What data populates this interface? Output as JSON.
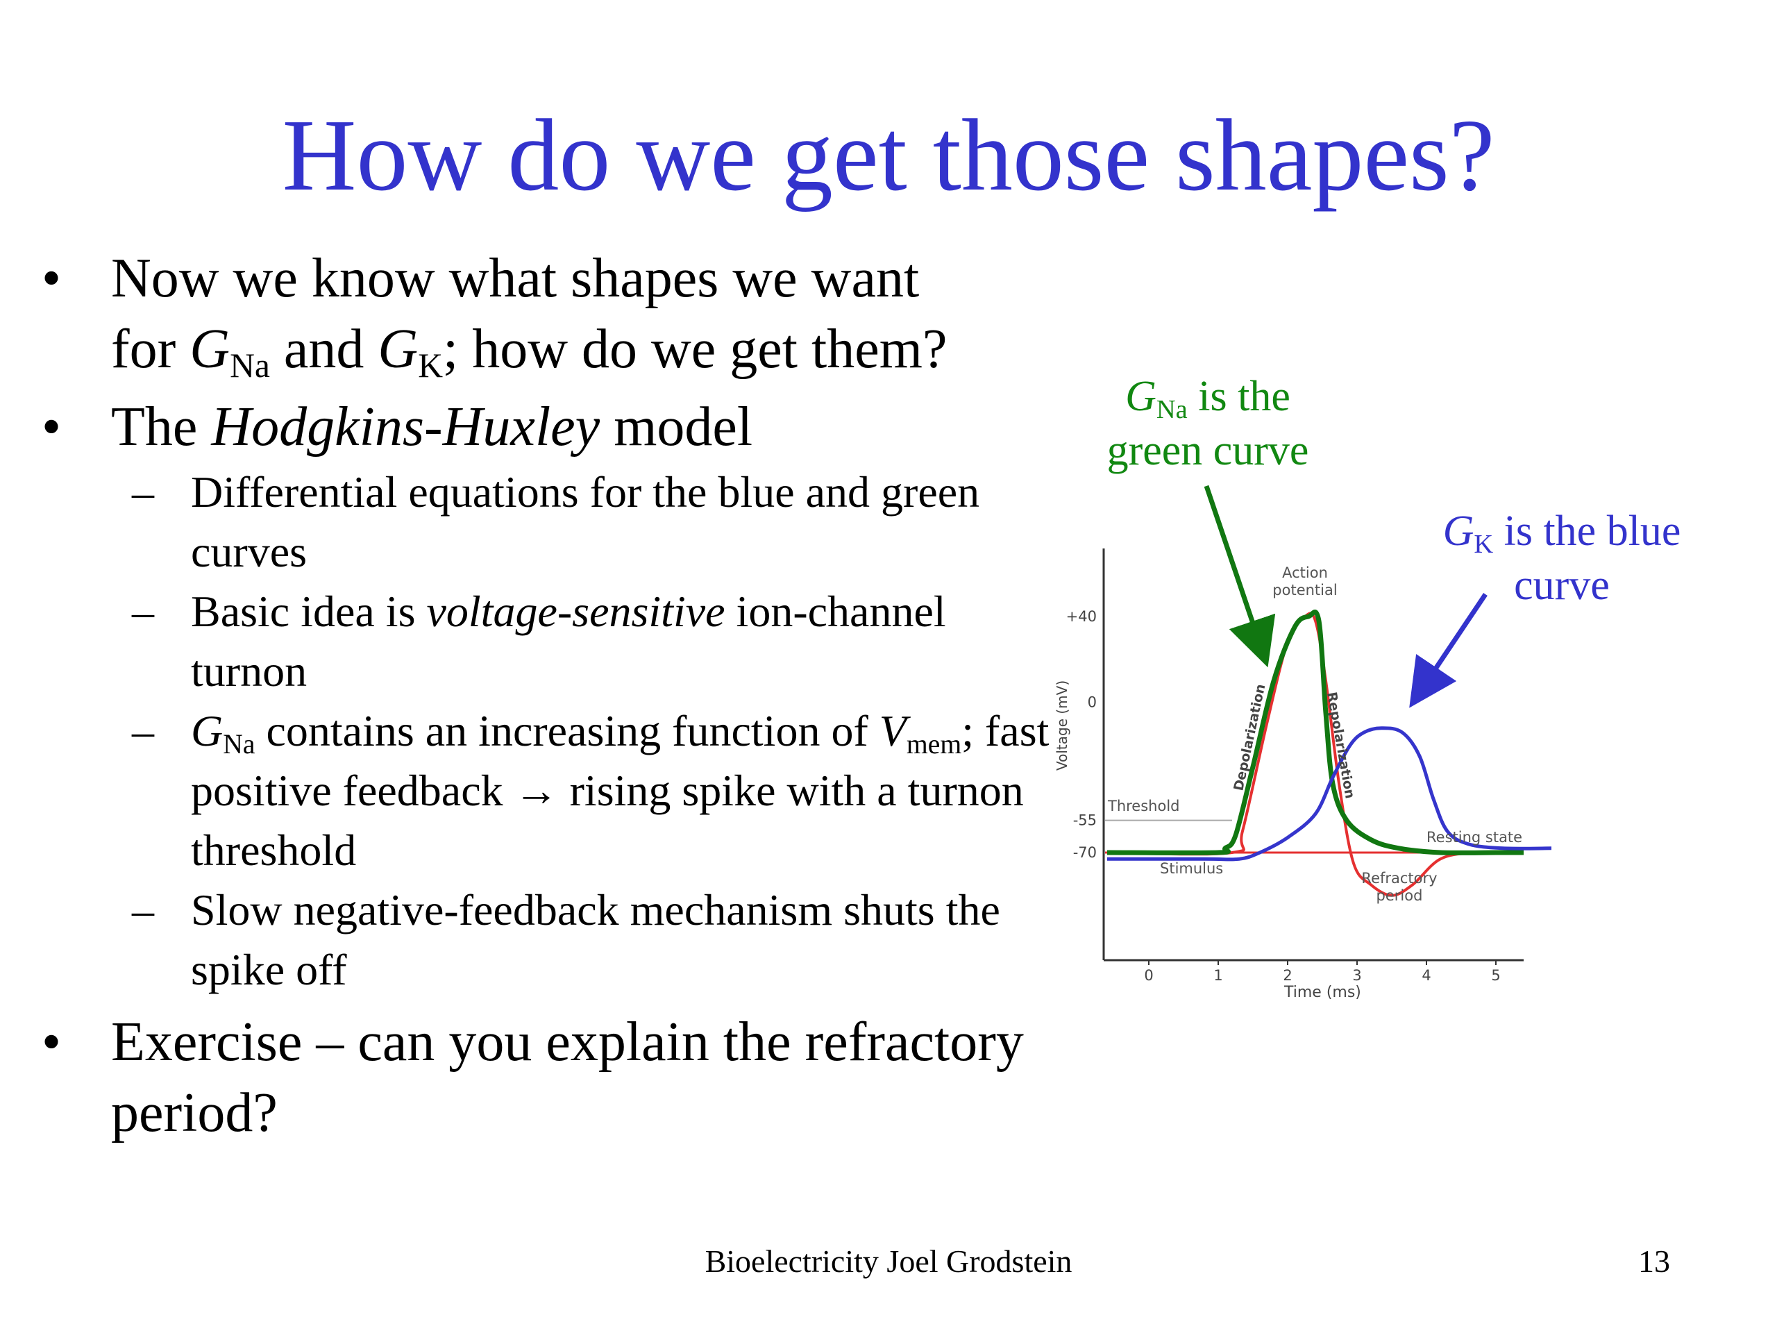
{
  "slide": {
    "title": "How do we get those shapes?",
    "footer": "Bioelectricity Joel Grodstein",
    "page_number": "13"
  },
  "bullets": {
    "b1_line1": "Now we know what shapes we want",
    "b1_for": "for ",
    "b1_G": "G",
    "b1_Na": "Na",
    "b1_and": " and ",
    "b1_G2": "G",
    "b1_K": "K",
    "b1_rest": "; how do we get them?",
    "b2_the": "The ",
    "b2_italic": "Hodgkins-Huxley",
    "b2_model": " model",
    "s1": "Differential equations for the blue and green curves",
    "s2_a": "Basic idea is ",
    "s2_italic": "voltage-sensitive",
    "s2_b": " ion-channel turnon",
    "s3_G": "G",
    "s3_Na": "Na",
    "s3_a": " contains an increasing function of ",
    "s3_V": "V",
    "s3_mem": "mem",
    "s3_b": "; fast positive feedback → rising spike with a turnon threshold",
    "s4": "Slow negative-feedback mechanism shuts the spike off",
    "b3": "Exercise – can you explain the refractory period?"
  },
  "callouts": {
    "green_G": "G",
    "green_Na": "Na",
    "green_line1": " is the",
    "green_line2": "green curve",
    "blue_G": "G",
    "blue_K": "K",
    "blue_line1": " is the blue",
    "blue_line2": "curve",
    "green_color": "#118811",
    "blue_color": "#3333cc"
  },
  "chart_data": {
    "type": "line",
    "ylabel": "Voltage (mV)",
    "xlabel": "Time (ms)",
    "x_ticks": [
      "0",
      "1",
      "2",
      "3",
      "4",
      "5"
    ],
    "y_ticks": [
      "+40",
      "0",
      "-55",
      "-70"
    ],
    "annotations": {
      "action_potential": [
        "Action",
        "potential"
      ],
      "threshold": "Threshold",
      "stimulus": "Stimulus",
      "depolarization": "Depolarization",
      "repolarization": "Repolarization",
      "resting_state": "Resting state",
      "refractory_period": [
        "Refractory",
        "period"
      ]
    },
    "series": [
      {
        "color": "#e53030",
        "points": [
          [
            -0.6,
            -70
          ],
          [
            1.2,
            -70
          ],
          [
            1.35,
            -60
          ],
          [
            1.7,
            -10
          ],
          [
            2.0,
            28
          ],
          [
            2.25,
            40
          ],
          [
            2.4,
            38
          ],
          [
            2.55,
            10
          ],
          [
            2.75,
            -40
          ],
          [
            2.95,
            -75
          ],
          [
            3.2,
            -85
          ],
          [
            3.5,
            -90
          ],
          [
            3.8,
            -85
          ],
          [
            4.2,
            -73
          ],
          [
            4.7,
            -70
          ],
          [
            5.2,
            -70
          ]
        ]
      },
      {
        "color": "#117711",
        "points": [
          [
            -0.6,
            -70
          ],
          [
            1.0,
            -70
          ],
          [
            1.1,
            -68
          ],
          [
            1.25,
            -62
          ],
          [
            1.5,
            -30
          ],
          [
            1.8,
            10
          ],
          [
            2.1,
            35
          ],
          [
            2.3,
            40
          ],
          [
            2.45,
            38
          ],
          [
            2.55,
            -5
          ],
          [
            2.65,
            -38
          ],
          [
            2.85,
            -55
          ],
          [
            3.2,
            -64
          ],
          [
            3.6,
            -68
          ],
          [
            4.2,
            -70
          ],
          [
            5.0,
            -70
          ],
          [
            5.4,
            -70
          ]
        ]
      },
      {
        "color": "#3535cc",
        "points": [
          [
            -0.6,
            -73
          ],
          [
            0.8,
            -73
          ],
          [
            1.3,
            -73
          ],
          [
            1.6,
            -70
          ],
          [
            2.0,
            -63
          ],
          [
            2.4,
            -52
          ],
          [
            2.65,
            -35
          ],
          [
            2.9,
            -20
          ],
          [
            3.1,
            -14
          ],
          [
            3.35,
            -12
          ],
          [
            3.65,
            -14
          ],
          [
            3.9,
            -25
          ],
          [
            4.1,
            -45
          ],
          [
            4.3,
            -60
          ],
          [
            4.6,
            -66
          ],
          [
            5.1,
            -68
          ],
          [
            5.8,
            -68
          ]
        ]
      }
    ]
  }
}
